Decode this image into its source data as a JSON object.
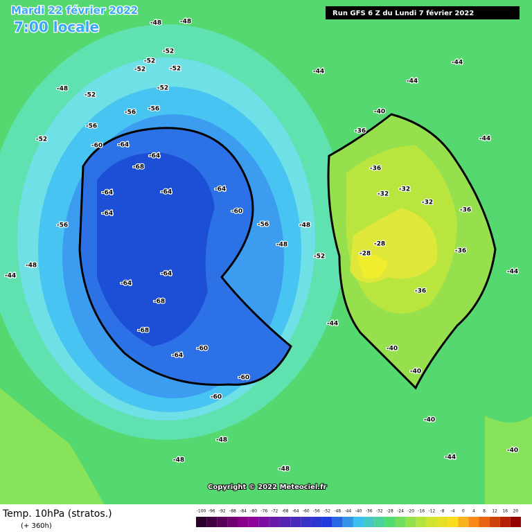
{
  "header": {
    "date": "Mardi 22 février 2022",
    "time": "7:00 locale",
    "run": "Run GFS 6 Z du Lundi 7 février 2022"
  },
  "copyright": "Copyright © 2022 Meteociel.fr",
  "footer": {
    "title": "Temp. 10hPa (stratos.)",
    "range": "(+ 360h)"
  },
  "legend": {
    "ticks": [
      -100,
      -96,
      -92,
      -88,
      -84,
      -80,
      -76,
      -72,
      -68,
      -64,
      -60,
      -56,
      -52,
      -48,
      -44,
      -40,
      -36,
      -32,
      -28,
      -24,
      -20,
      -16,
      -12,
      -8,
      -4,
      0,
      4,
      8,
      12,
      16,
      20
    ]
  },
  "contour_labels": [
    -48,
    -48,
    -52,
    -52,
    -52,
    -52,
    -52,
    -52,
    -56,
    -56,
    -56,
    -64,
    -60,
    -64,
    -68,
    -64,
    -64,
    -64,
    -64,
    -64,
    -64,
    -68,
    -68,
    -60,
    -64,
    -60,
    -60,
    -60,
    -56,
    -48,
    -52,
    -40,
    -36,
    -36,
    -32,
    -32,
    -32,
    -28,
    -28,
    -36,
    -36,
    -36,
    -40,
    -40,
    -44,
    -44,
    -44,
    -44,
    -44,
    -44,
    -48,
    -52,
    -48,
    -48,
    -48,
    -48,
    -44,
    -40,
    -40,
    -44,
    -56,
    -48
  ]
}
